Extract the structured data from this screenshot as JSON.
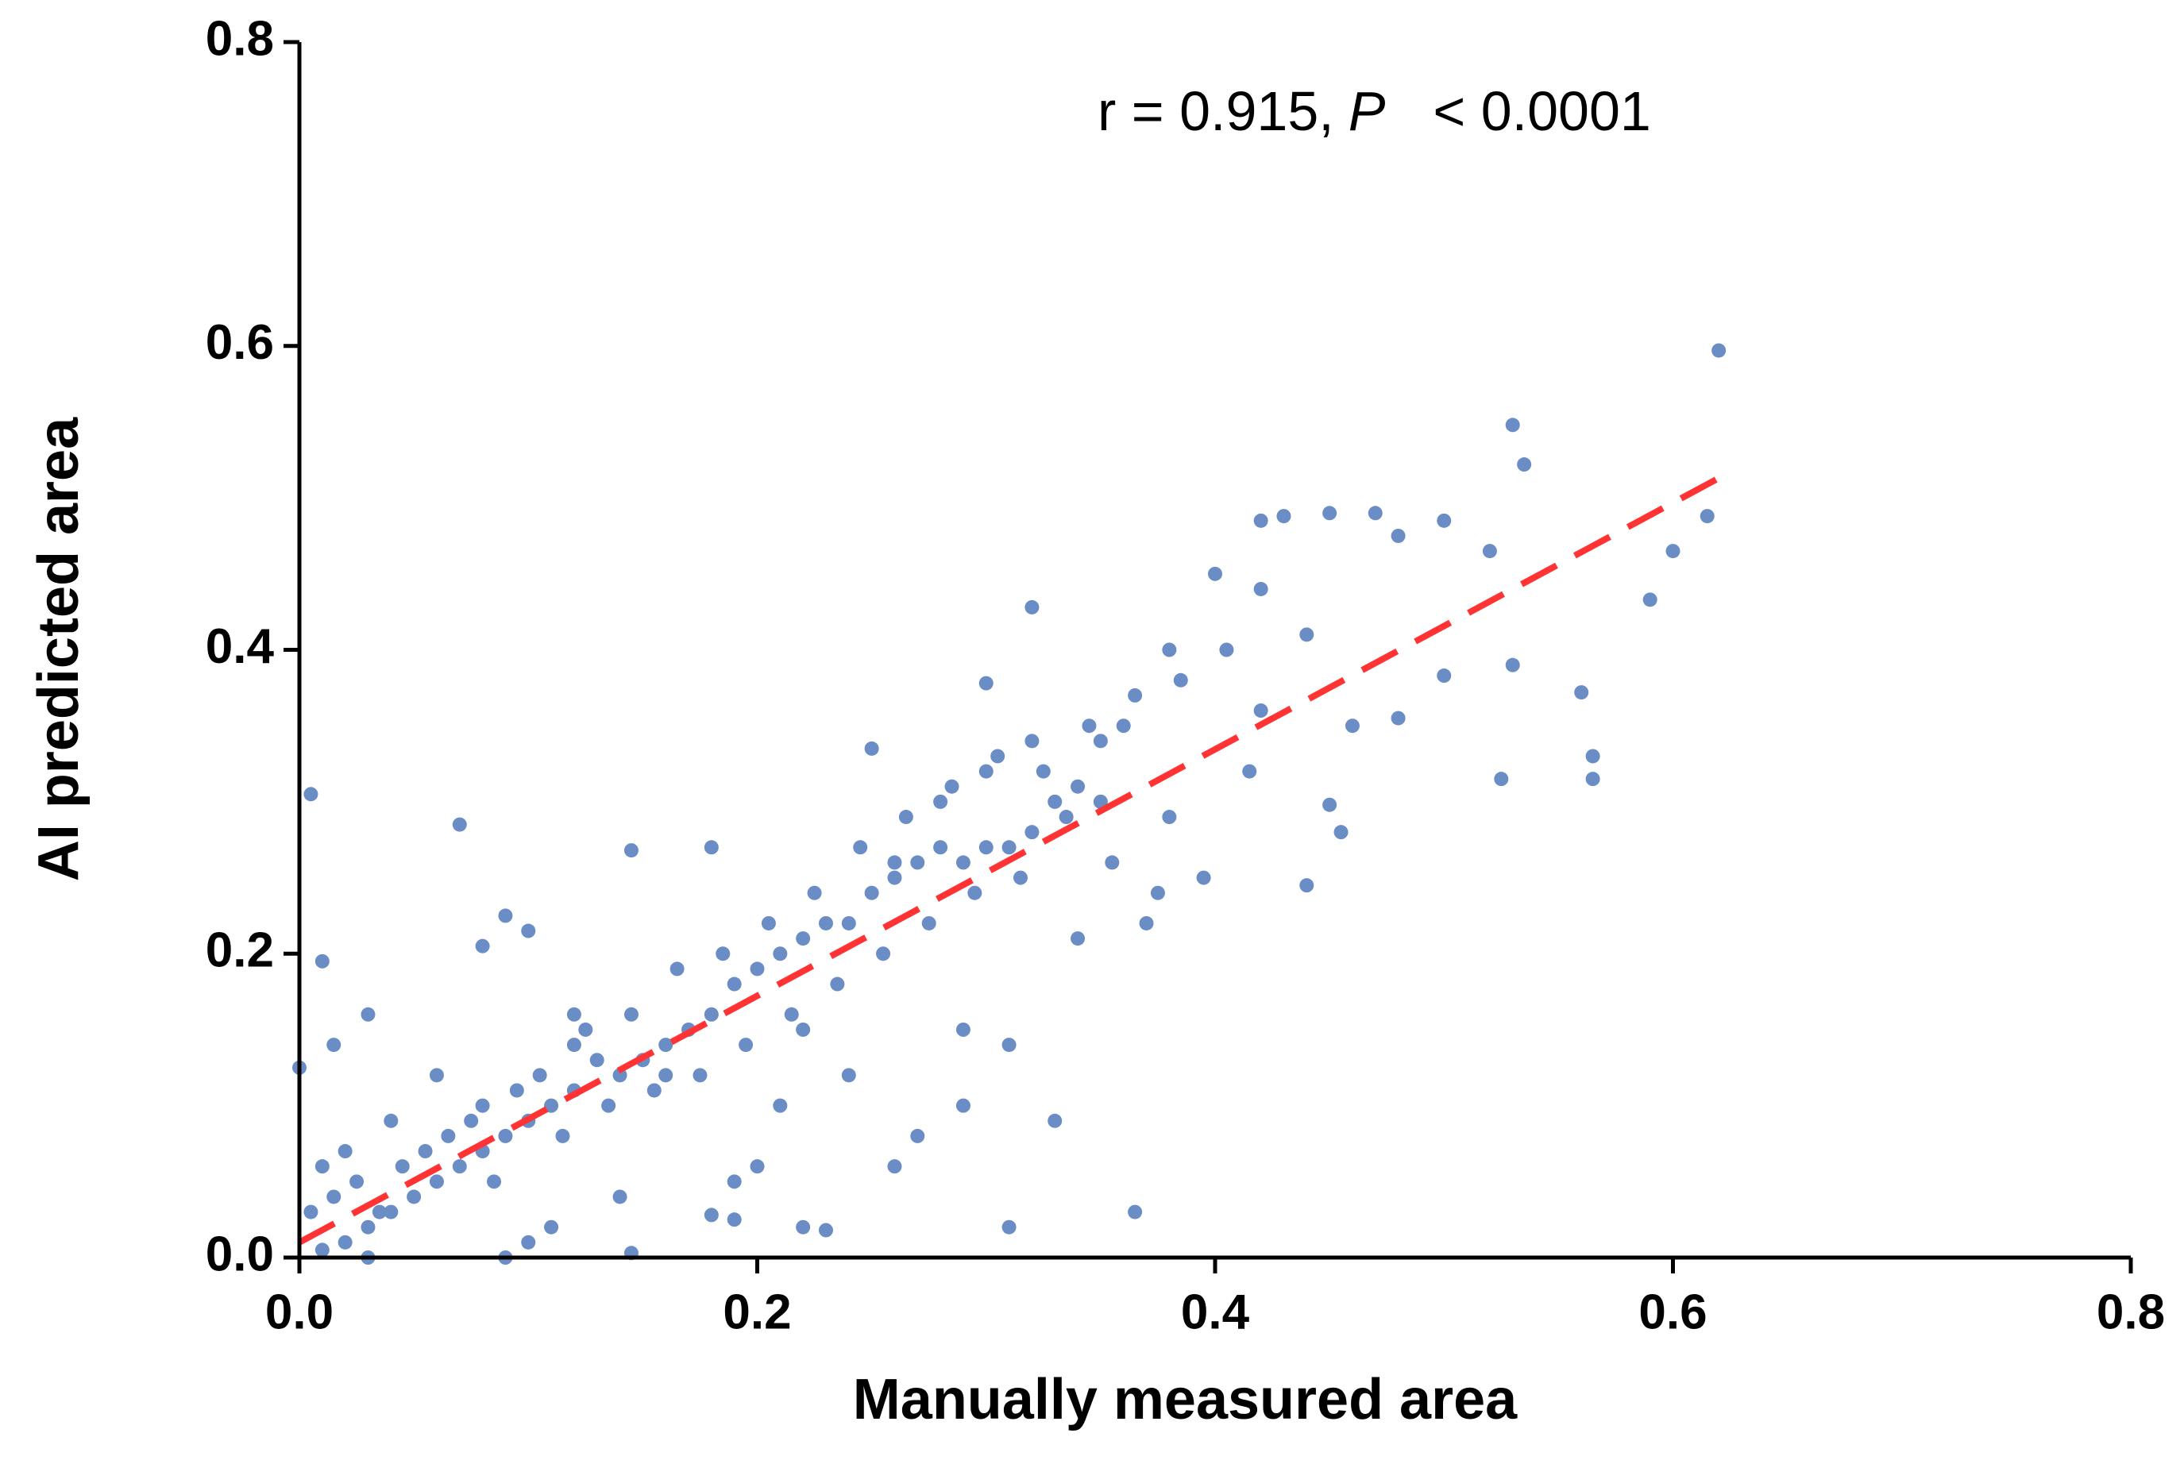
{
  "chart_data": {
    "type": "scatter",
    "x_label": "Manually measured area",
    "y_label": "AI predicted area",
    "annotation": [
      "r = 0.915,",
      "P",
      "< 0.0001"
    ],
    "color": "#6a8dc6",
    "xlim": [
      0,
      0.8
    ],
    "ylim": [
      0,
      0.8
    ],
    "xticks": [
      {
        "value": 0,
        "label": "0.0"
      },
      0.2,
      0.4,
      0.6,
      0.8
    ],
    "yticks": [
      {
        "value": 0,
        "label": "0.0"
      },
      0.2,
      0.4,
      0.6,
      0.8
    ],
    "x": [
      0.005,
      0.01,
      0.015,
      0.0,
      0.07,
      0.145,
      0.62,
      0.53,
      0.535,
      0.32,
      0.365,
      0.31,
      0.565,
      0.565,
      0.56,
      0.525,
      0.59,
      0.6,
      0.615,
      0.44,
      0.45,
      0.455,
      0.3,
      0.25,
      0.22,
      0.23,
      0.18,
      0.19,
      0.145,
      0.09,
      0.1,
      0.03,
      0.47,
      0.45,
      0.42,
      0.43,
      0.5,
      0.48,
      0.52,
      0.53,
      0.5,
      0.48,
      0.46,
      0.4,
      0.42,
      0.44,
      0.38,
      0.36,
      0.35,
      0.34,
      0.33,
      0.32,
      0.31,
      0.3,
      0.29,
      0.28,
      0.27,
      0.26,
      0.25,
      0.24,
      0.23,
      0.22,
      0.21,
      0.2,
      0.19,
      0.18,
      0.17,
      0.16,
      0.15,
      0.14,
      0.13,
      0.12,
      0.11,
      0.1,
      0.09,
      0.08,
      0.07,
      0.06,
      0.05,
      0.04,
      0.03,
      0.02,
      0.01,
      0.005,
      0.015,
      0.025,
      0.035,
      0.045,
      0.055,
      0.065,
      0.075,
      0.085,
      0.095,
      0.105,
      0.115,
      0.125,
      0.135,
      0.145,
      0.155,
      0.165,
      0.175,
      0.185,
      0.195,
      0.205,
      0.215,
      0.225,
      0.235,
      0.245,
      0.255,
      0.265,
      0.275,
      0.285,
      0.295,
      0.305,
      0.315,
      0.325,
      0.335,
      0.345,
      0.355,
      0.365,
      0.375,
      0.385,
      0.395,
      0.405,
      0.415,
      0.09,
      0.1,
      0.08,
      0.12,
      0.18,
      0.2,
      0.14,
      0.27,
      0.29,
      0.31,
      0.33,
      0.24,
      0.26,
      0.21,
      0.19,
      0.28,
      0.3,
      0.32,
      0.35,
      0.37,
      0.29,
      0.06,
      0.04,
      0.02,
      0.11,
      0.08,
      0.12,
      0.16,
      0.22,
      0.26,
      0.34,
      0.38,
      0.42,
      0.01,
      0.03
    ],
    "values": [
      0.305,
      0.195,
      0.14,
      0.125,
      0.285,
      0.268,
      0.597,
      0.548,
      0.522,
      0.428,
      0.03,
      0.02,
      0.315,
      0.33,
      0.372,
      0.315,
      0.433,
      0.465,
      0.488,
      0.245,
      0.298,
      0.28,
      0.378,
      0.335,
      0.02,
      0.018,
      0.028,
      0.025,
      0.003,
      0.0,
      0.01,
      0.16,
      0.49,
      0.49,
      0.485,
      0.488,
      0.485,
      0.475,
      0.465,
      0.39,
      0.383,
      0.355,
      0.35,
      0.45,
      0.44,
      0.41,
      0.4,
      0.35,
      0.34,
      0.31,
      0.3,
      0.28,
      0.27,
      0.27,
      0.26,
      0.27,
      0.26,
      0.25,
      0.24,
      0.22,
      0.22,
      0.21,
      0.2,
      0.19,
      0.18,
      0.16,
      0.15,
      0.14,
      0.13,
      0.12,
      0.13,
      0.11,
      0.1,
      0.09,
      0.08,
      0.07,
      0.06,
      0.05,
      0.04,
      0.03,
      0.02,
      0.01,
      0.005,
      0.03,
      0.04,
      0.05,
      0.03,
      0.06,
      0.07,
      0.08,
      0.09,
      0.05,
      0.11,
      0.12,
      0.08,
      0.15,
      0.1,
      0.16,
      0.11,
      0.19,
      0.12,
      0.2,
      0.14,
      0.22,
      0.16,
      0.24,
      0.18,
      0.27,
      0.2,
      0.29,
      0.22,
      0.31,
      0.24,
      0.33,
      0.25,
      0.32,
      0.29,
      0.35,
      0.26,
      0.37,
      0.24,
      0.38,
      0.25,
      0.4,
      0.32,
      0.225,
      0.215,
      0.205,
      0.16,
      0.27,
      0.06,
      0.04,
      0.08,
      0.1,
      0.14,
      0.09,
      0.12,
      0.06,
      0.1,
      0.05,
      0.3,
      0.32,
      0.34,
      0.3,
      0.22,
      0.15,
      0.12,
      0.09,
      0.07,
      0.02,
      0.1,
      0.14,
      0.12,
      0.15,
      0.26,
      0.21,
      0.29,
      0.36,
      0.06,
      0.0
    ],
    "fit_line": {
      "x": [
        0,
        0.62
      ],
      "y": [
        0.01,
        0.513
      ],
      "color": "#ff3333"
    }
  }
}
